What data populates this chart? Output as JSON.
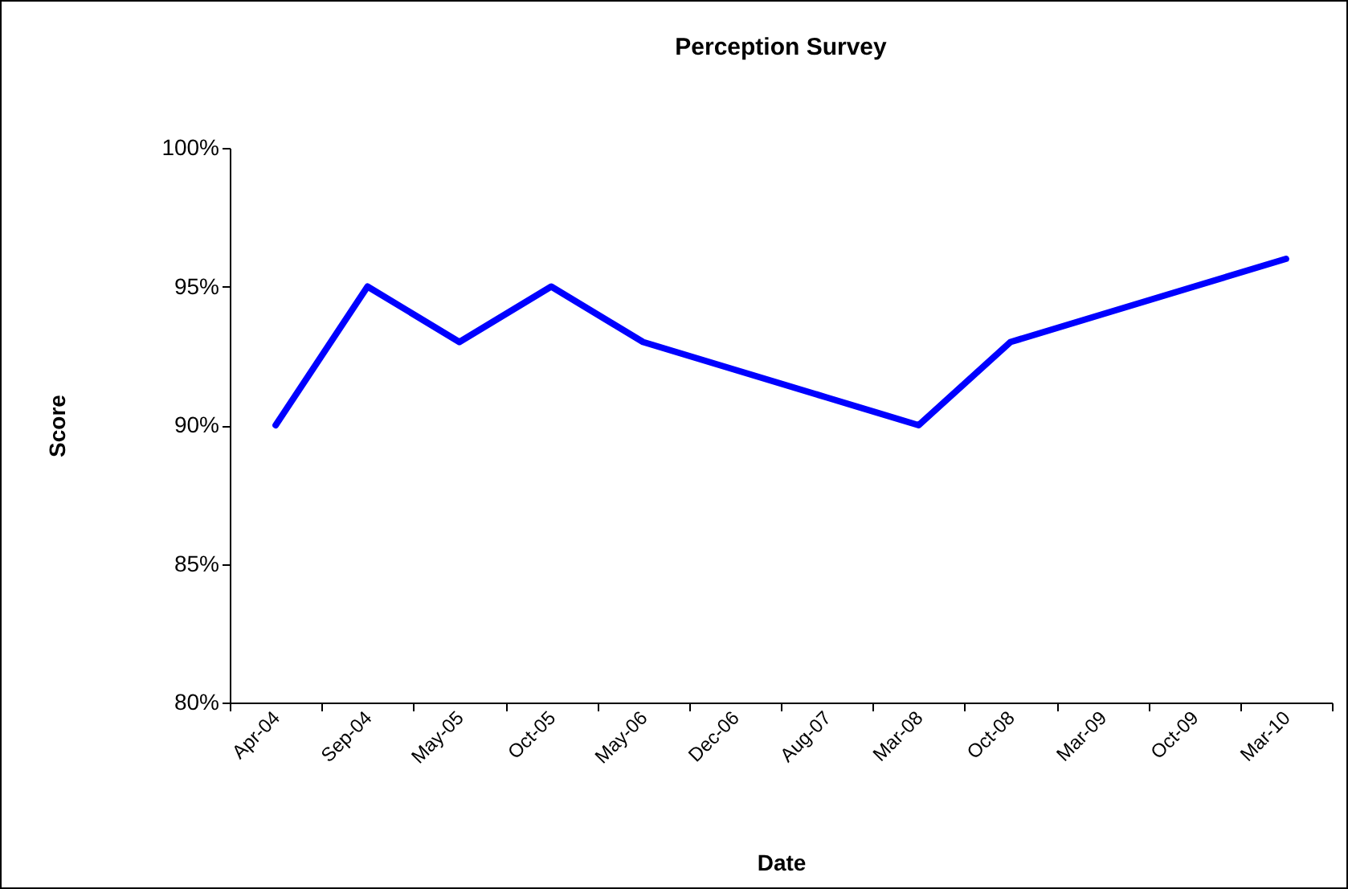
{
  "chart_data": {
    "type": "line",
    "title": "Perception Survey",
    "xlabel": "Date",
    "ylabel": "Score",
    "categories": [
      "Apr-04",
      "Sep-04",
      "May-05",
      "Oct-05",
      "May-06",
      "Dec-06",
      "Aug-07",
      "Mar-08",
      "Oct-08",
      "Mar-09",
      "Oct-09",
      "Mar-10"
    ],
    "series": [
      {
        "color": "#0000ff",
        "values": [
          90,
          95,
          93,
          95,
          93,
          92,
          91,
          90,
          93,
          94,
          95,
          96
        ]
      }
    ],
    "ylim": [
      80,
      100
    ],
    "yticks": [
      {
        "value": 80,
        "label": "80%"
      },
      {
        "value": 85,
        "label": "85%"
      },
      {
        "value": 90,
        "label": "90%"
      },
      {
        "value": 95,
        "label": "95%"
      },
      {
        "value": 100,
        "label": "100%"
      }
    ],
    "grid": false,
    "legend": false,
    "marker": "none",
    "line_style": "solid"
  }
}
